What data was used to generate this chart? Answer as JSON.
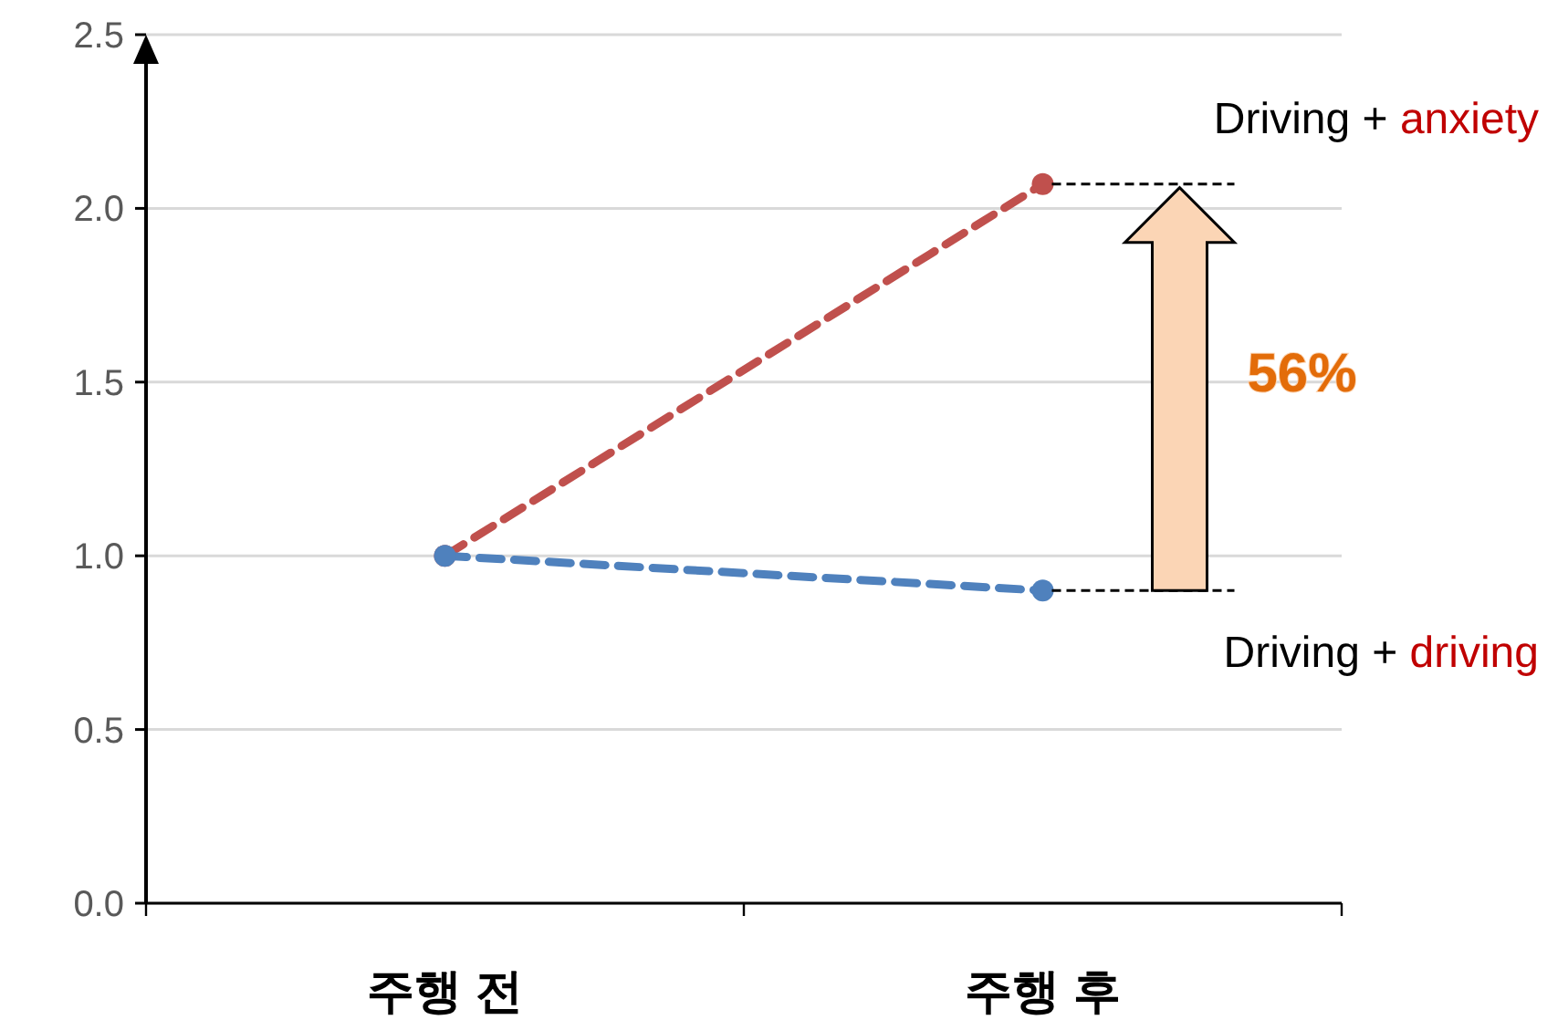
{
  "chart_data": {
    "type": "line",
    "categories": [
      "주행 전",
      "주행 후"
    ],
    "series": [
      {
        "name": "Driving + anxiety",
        "color": "#c0504d",
        "values": [
          1.0,
          2.07
        ]
      },
      {
        "name": "Driving + driving",
        "color": "#4f81bd",
        "values": [
          1.0,
          0.9
        ]
      }
    ],
    "ylim": [
      0,
      2.5
    ],
    "yticks": [
      {
        "value": 0,
        "label": "0.0"
      },
      {
        "value": 0.5,
        "label": "0.5"
      },
      {
        "value": 1,
        "label": "1.0"
      },
      {
        "value": 1.5,
        "label": "1.5"
      },
      {
        "value": 2,
        "label": "2.0"
      },
      {
        "value": 2.5,
        "label": "2.5"
      }
    ],
    "grid": "y",
    "marker": "circle",
    "line_style": "dashed",
    "annotations": [
      "56%"
    ]
  }
}
